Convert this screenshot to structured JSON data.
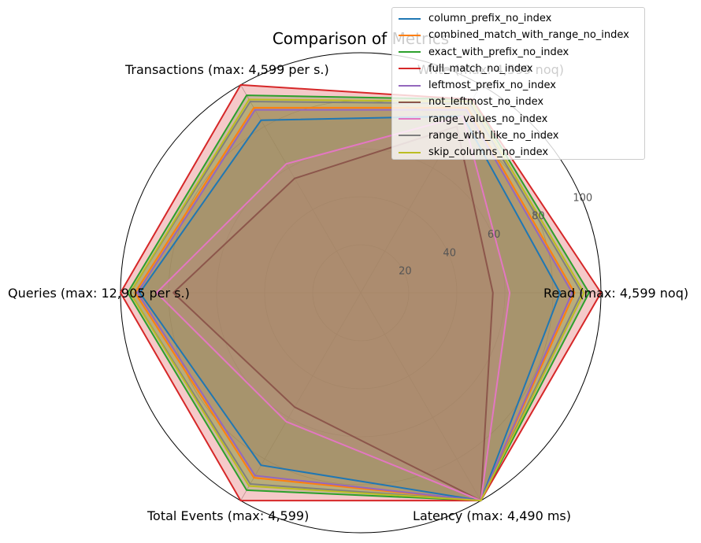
{
  "chart_data": {
    "type": "radar",
    "title": "Comparison of Metrics",
    "axes": [
      "Read (max: 4,599 noq)",
      "Write (max: 4,599 noq)",
      "Transactions (max: 4,599 per s.)",
      "Queries (max: 12,905 per s.)",
      "Total Events (max: 4,599)",
      "Latency (max: 4,490 ms)"
    ],
    "rlim": [
      0,
      100
    ],
    "rticks": [
      "20",
      "40",
      "60",
      "80",
      "100"
    ],
    "grid": true,
    "legend_position": "top-right",
    "series": [
      {
        "name": "column_prefix_no_index",
        "color": "#1f77b4",
        "values": [
          83,
          85,
          83,
          92,
          83,
          100
        ]
      },
      {
        "name": "combined_match_with_range_no_index",
        "color": "#ff7f0e",
        "values": [
          89,
          89,
          89,
          94,
          89,
          100
        ]
      },
      {
        "name": "exact_with_prefix_no_index",
        "color": "#2ca02c",
        "values": [
          95,
          93,
          95,
          97,
          95,
          100
        ]
      },
      {
        "name": "full_match_no_index",
        "color": "#d62728",
        "values": [
          100,
          93,
          100,
          100,
          100,
          100
        ]
      },
      {
        "name": "leftmost_prefix_no_index",
        "color": "#9467bd",
        "values": [
          88,
          88,
          88,
          93,
          88,
          100
        ]
      },
      {
        "name": "not_leftmost_no_index",
        "color": "#8c564b",
        "values": [
          55,
          80,
          55,
          78,
          55,
          100
        ]
      },
      {
        "name": "range_values_no_index",
        "color": "#e377c2",
        "values": [
          62,
          85,
          62,
          85,
          62,
          100
        ]
      },
      {
        "name": "range_with_like_no_index",
        "color": "#7f7f7f",
        "values": [
          92,
          91,
          92,
          96,
          92,
          100
        ]
      },
      {
        "name": "skip_columns_no_index",
        "color": "#bcbd22",
        "values": [
          93,
          92,
          93,
          96,
          93,
          100
        ]
      }
    ]
  }
}
